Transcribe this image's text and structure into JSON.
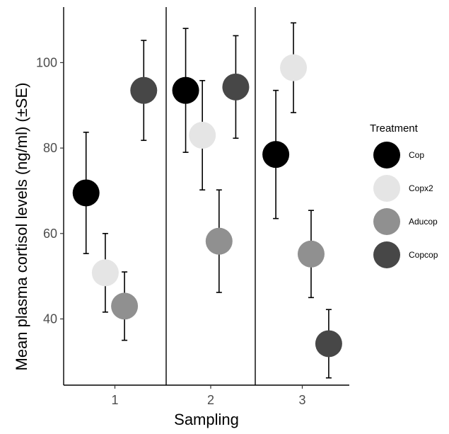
{
  "chart_data": {
    "type": "scatter",
    "xlabel": "Sampling",
    "ylabel": "Mean plasma cortisol levels (ng/ml) (±SE)",
    "categories": [
      "1",
      "2",
      "3"
    ],
    "yticks": [
      40,
      60,
      80,
      100
    ],
    "ylim": [
      24.5,
      113
    ],
    "grid": false,
    "legend": {
      "title": "Treatment",
      "position": "right"
    },
    "series": [
      {
        "name": "Cop",
        "color": "#000000",
        "values": [
          69.5,
          93.5,
          78.5
        ],
        "se": [
          14.2,
          14.5,
          15.0
        ]
      },
      {
        "name": "Copx2",
        "color": "#e5e5e5",
        "values": [
          50.8,
          83.0,
          98.8
        ],
        "se": [
          9.2,
          12.8,
          10.5
        ]
      },
      {
        "name": "Aducop",
        "color": "#909090",
        "values": [
          43.0,
          58.2,
          55.2
        ],
        "se": [
          8.0,
          12.0,
          10.2
        ]
      },
      {
        "name": "Copcop",
        "color": "#474747",
        "values": [
          93.5,
          94.3,
          34.2
        ],
        "se": [
          11.7,
          12.0,
          8.0
        ]
      }
    ]
  }
}
